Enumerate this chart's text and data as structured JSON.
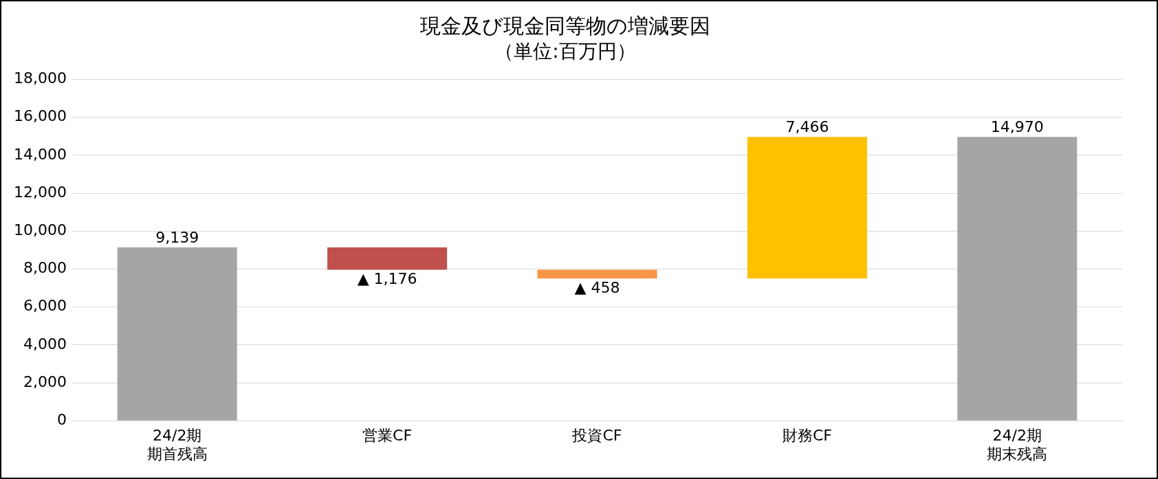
{
  "chart_data": {
    "type": "bar",
    "title": "現金及び現金同等物の増減要因",
    "subtitle": "（単位:百万円）",
    "categories": [
      "24/2期期首残高",
      "営業CF",
      "投資CF",
      "財務CF",
      "24/2期期末残高"
    ],
    "values": [
      9139,
      -1176,
      -458,
      7466,
      14970
    ],
    "base": [
      0,
      9139,
      7963,
      7505,
      0
    ],
    "colors": [
      "#a5a5a5",
      "#c0504d",
      "#f79646",
      "#ffc000",
      "#a5a5a5"
    ],
    "value_labels": [
      "9,139",
      "▲ 1,176",
      "▲ 458",
      "7,466",
      "14,970"
    ],
    "ylim": [
      0,
      18000
    ],
    "yticks": [
      0,
      {
        "value": 2000,
        "label": "2,000"
      },
      {
        "value": 4000,
        "label": "4,000"
      },
      {
        "value": 6000,
        "label": "6,000"
      },
      {
        "value": 8000,
        "label": "8,000"
      },
      {
        "value": 10000,
        "label": "10,000"
      },
      {
        "value": 12000,
        "label": "12,000"
      },
      {
        "value": 14000,
        "label": "14,000"
      },
      {
        "value": 16000,
        "label": "16,000"
      },
      {
        "value": 18000,
        "label": "18,000"
      }
    ],
    "grid": "y",
    "legend": false
  }
}
